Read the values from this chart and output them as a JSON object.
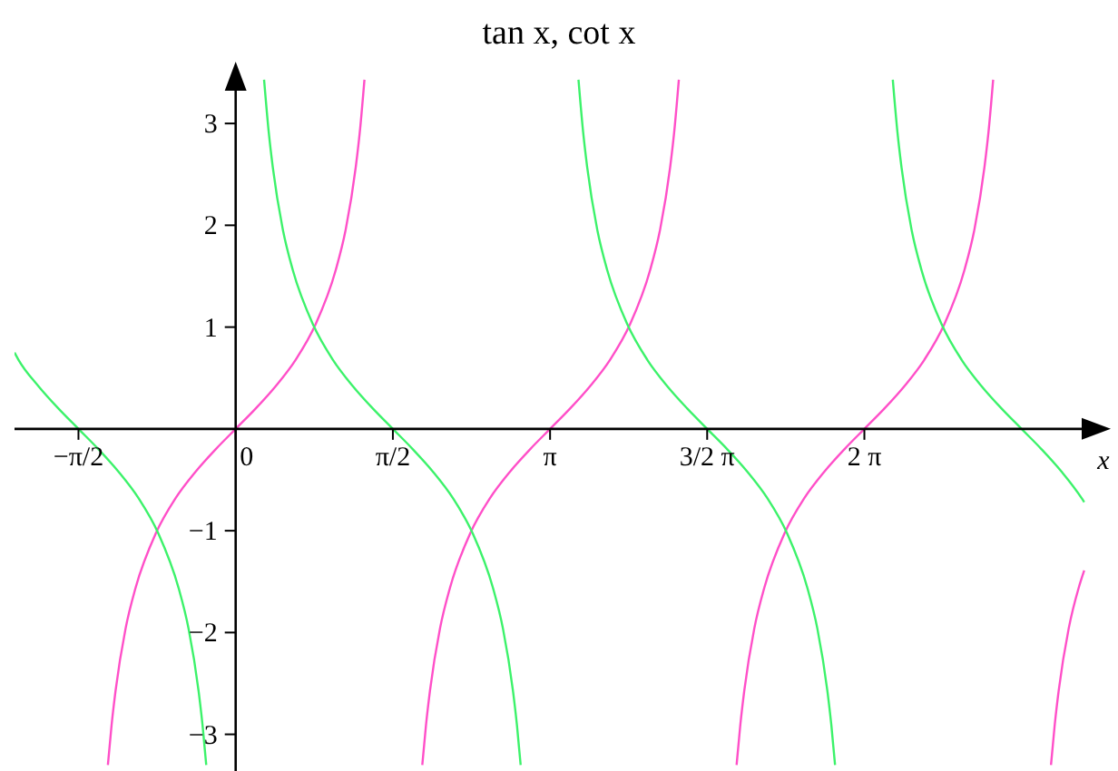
{
  "chart_data": {
    "type": "line",
    "title": "tan x, cot x",
    "xlabel": "x",
    "xlim": [
      -2.21,
      8.6
    ],
    "ylim": [
      -3.36,
      3.5
    ],
    "xticks": [
      {
        "value": -1.571,
        "label": "−π/2"
      },
      {
        "value": 0,
        "label": "0"
      },
      {
        "value": 1.571,
        "label": "π/2"
      },
      {
        "value": 3.142,
        "label": "π"
      },
      {
        "value": 4.712,
        "label": "3/2 π"
      },
      {
        "value": 6.283,
        "label": "2 π"
      }
    ],
    "yticks": [
      {
        "value": -3,
        "label": "−3"
      },
      {
        "value": -2,
        "label": "−2"
      },
      {
        "value": -1,
        "label": "−1"
      },
      1,
      2,
      3
    ],
    "grid": false,
    "series": [
      {
        "color": "#ff4fc8",
        "x": [
          -1.277,
          -1.24,
          -1.2,
          -1.1,
          -1.0,
          -0.8,
          -0.6,
          -0.4,
          -0.2,
          0,
          0.2,
          0.4,
          0.6,
          0.8,
          1.0,
          1.1,
          1.2,
          1.24,
          1.287,
          1.571,
          1.865,
          1.902,
          1.942,
          2.042,
          2.142,
          2.342,
          2.542,
          2.742,
          2.942,
          3.142,
          3.342,
          3.542,
          3.742,
          3.942,
          4.142,
          4.242,
          4.342,
          4.382,
          4.429,
          4.712,
          5.006,
          5.043,
          5.083,
          5.183,
          5.283,
          5.483,
          5.683,
          5.883,
          6.083,
          6.283,
          6.483,
          6.683,
          6.883,
          7.083,
          7.283,
          7.383,
          7.483,
          7.523,
          7.57,
          7.854,
          8.148,
          8.185,
          8.225,
          8.325,
          8.425,
          8.48
        ],
        "values": [
          -3.3,
          -2.91,
          -2.57,
          -1.96,
          -1.56,
          -1.03,
          -0.68,
          -0.42,
          -0.2,
          0,
          0.2,
          0.42,
          0.68,
          1.03,
          1.56,
          1.96,
          2.57,
          2.91,
          3.43,
          null,
          -3.3,
          -2.91,
          -2.57,
          -1.96,
          -1.56,
          -1.03,
          -0.68,
          -0.42,
          -0.2,
          0,
          0.2,
          0.42,
          0.68,
          1.03,
          1.56,
          1.96,
          2.57,
          2.91,
          3.43,
          null,
          -3.3,
          -2.91,
          -2.57,
          -1.96,
          -1.56,
          -1.03,
          -0.68,
          -0.42,
          -0.2,
          0,
          0.2,
          0.42,
          0.68,
          1.03,
          1.56,
          1.96,
          2.57,
          2.91,
          3.43,
          null,
          -3.3,
          -2.91,
          -2.57,
          -1.96,
          -1.56,
          -1.39
        ]
      },
      {
        "color": "#3cf26a",
        "x": [
          -2.21,
          -2.171,
          -1.971,
          -1.771,
          -1.571,
          -1.371,
          -1.171,
          -0.971,
          -0.771,
          -0.571,
          -0.471,
          -0.371,
          -0.331,
          -0.294,
          0,
          0.284,
          0.331,
          0.371,
          0.471,
          0.571,
          0.771,
          0.971,
          1.171,
          1.371,
          1.571,
          1.771,
          1.971,
          2.171,
          2.371,
          2.571,
          2.671,
          2.771,
          2.811,
          2.848,
          3.142,
          3.426,
          3.473,
          3.513,
          3.613,
          3.713,
          3.913,
          4.113,
          4.313,
          4.513,
          4.712,
          4.913,
          5.113,
          5.313,
          5.513,
          5.713,
          5.813,
          5.913,
          5.953,
          5.99,
          6.283,
          6.567,
          6.614,
          6.654,
          6.754,
          6.854,
          7.054,
          7.254,
          7.454,
          7.654,
          7.854,
          8.054,
          8.254,
          8.454,
          8.48
        ],
        "values": [
          0.75,
          0.68,
          0.42,
          0.2,
          0,
          -0.2,
          -0.42,
          -0.68,
          -1.03,
          -1.56,
          -1.96,
          -2.57,
          -2.91,
          -3.3,
          null,
          3.43,
          2.91,
          2.57,
          1.96,
          1.56,
          1.03,
          0.68,
          0.42,
          0.2,
          0,
          -0.2,
          -0.42,
          -0.68,
          -1.03,
          -1.56,
          -1.96,
          -2.57,
          -2.91,
          -3.3,
          null,
          3.43,
          2.91,
          2.57,
          1.96,
          1.56,
          1.03,
          0.68,
          0.42,
          0.2,
          0,
          -0.2,
          -0.42,
          -0.68,
          -1.03,
          -1.56,
          -1.96,
          -2.57,
          -2.91,
          -3.3,
          null,
          3.43,
          2.91,
          2.57,
          1.96,
          1.56,
          1.03,
          0.68,
          0.42,
          0.2,
          0,
          -0.2,
          -0.42,
          -0.68,
          -0.72
        ]
      }
    ]
  }
}
